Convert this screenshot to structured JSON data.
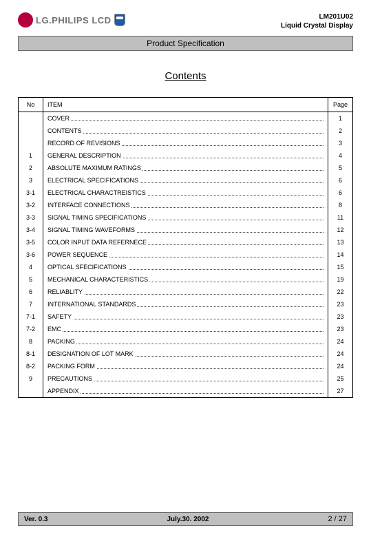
{
  "header": {
    "logo_text": "LG.PHILIPS LCD",
    "model": "LM201U02",
    "product": "Liquid Crystal Display",
    "spec_bar": "Product Specification"
  },
  "title": "Contents",
  "table": {
    "head_no": "No",
    "head_item": "ITEM",
    "head_page": "Page",
    "rows": [
      {
        "no": "",
        "item": "COVER",
        "page": "1"
      },
      {
        "no": "",
        "item": "CONTENTS",
        "page": "2"
      },
      {
        "no": "",
        "item": "RECORD OF REVISIONS",
        "page": "3"
      },
      {
        "no": "1",
        "item": "GENERAL DESCRIPTION",
        "page": "4"
      },
      {
        "no": "2",
        "item": "ABSOLUTE MAXIMUM RATINGS",
        "page": "5"
      },
      {
        "no": "3",
        "item": "ELECTRICAL SPECIFICATIONS",
        "page": "6"
      },
      {
        "no": "3-1",
        "item": "ELECTRICAL CHARACTREISTICS",
        "page": "6"
      },
      {
        "no": "3-2",
        "item": "INTERFACE CONNECTIONS",
        "page": "8"
      },
      {
        "no": "3-3",
        "item": "SIGNAL TIMING SPECIFICATIONS",
        "page": "11"
      },
      {
        "no": "3-4",
        "item": "SIGNAL TIMING WAVEFORMS",
        "page": "12"
      },
      {
        "no": "3-5",
        "item": "COLOR INPUT DATA REFERNECE",
        "page": "13"
      },
      {
        "no": "3-6",
        "item": "POWER SEQUENCE",
        "page": "14"
      },
      {
        "no": "4",
        "item": "OPTICAL SFECIFICATIONS",
        "page": "15"
      },
      {
        "no": "5",
        "item": "MECHANICAL CHARACTERISTICS",
        "page": "19"
      },
      {
        "no": "6",
        "item": "RELIABLITY",
        "page": "22"
      },
      {
        "no": "7",
        "item": "INTERNATIONAL STANDARDS",
        "page": "23"
      },
      {
        "no": "7-1",
        "item": "SAFETY",
        "page": "23"
      },
      {
        "no": "7-2",
        "item": "EMC",
        "page": "23"
      },
      {
        "no": "8",
        "item": "PACKING",
        "page": "24"
      },
      {
        "no": "8-1",
        "item": "DESIGNATION OF LOT MARK",
        "page": "24"
      },
      {
        "no": "8-2",
        "item": "PACKING FORM",
        "page": "24"
      },
      {
        "no": "9",
        "item": "PRECAUTIONS",
        "page": "25"
      },
      {
        "no": "",
        "item": "APPENDIX",
        "page": "27"
      }
    ]
  },
  "footer": {
    "version": "Ver. 0.3",
    "date": "July.30. 2002",
    "page": "2 / 27"
  },
  "colors": {
    "bar_bg": "#bfbfbf",
    "bar_border": "#666666",
    "logo_circle": "#b5003c",
    "logo_text": "#6d7278",
    "shield": "#1e5aa8"
  }
}
